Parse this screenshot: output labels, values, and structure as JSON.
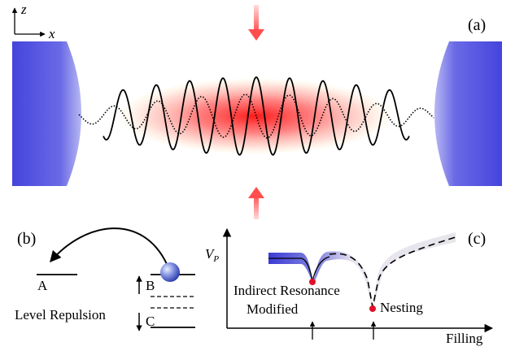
{
  "axes": {
    "z": "z",
    "x": "x"
  },
  "panels": {
    "a": "(a)",
    "b": "(b)",
    "c": "(c)"
  },
  "panel_b": {
    "level_a": "A",
    "level_b": "B",
    "level_c": "C",
    "caption": "Level Repulsion"
  },
  "panel_c": {
    "ylabel_main": "V",
    "ylabel_sub": "P",
    "xlabel": "Filling",
    "label_indirect": "Indirect Resonance",
    "label_modified": "Modified",
    "label_nesting": "Nesting"
  },
  "colors": {
    "mirror": "#4f4fe0",
    "atom_cloud": "#ff2a2a",
    "pump_arrow": "#ff6b6b",
    "marker_dot": "#e0102a",
    "curve_blue": "#3b3bd6"
  }
}
